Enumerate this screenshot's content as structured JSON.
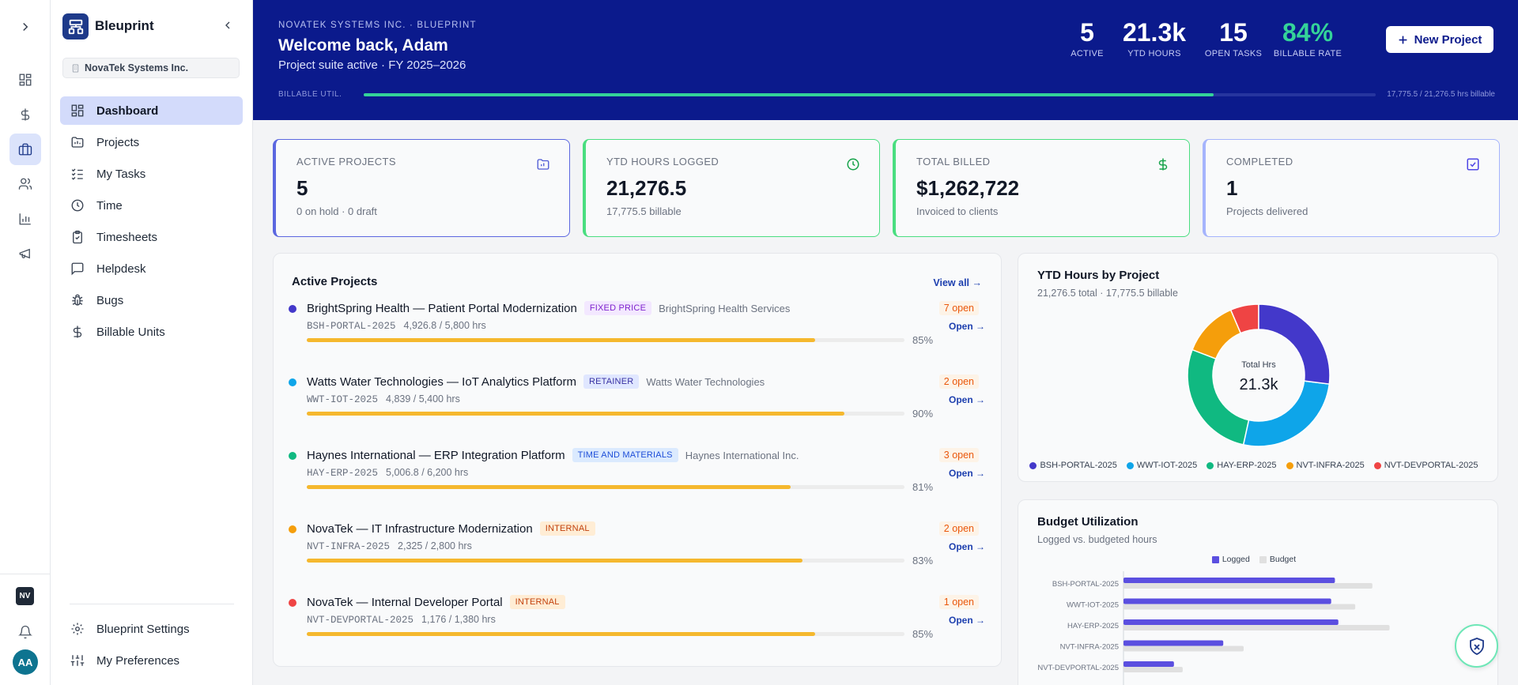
{
  "app": {
    "name": "Bleuprint",
    "org": "NovaTek Systems Inc.",
    "user_initials": "AA",
    "org_initials": "NV"
  },
  "rail": {
    "icons": [
      "chevron-right-icon",
      "dashboard-icon",
      "dollar-icon",
      "briefcase-icon",
      "users-icon",
      "bar-chart-icon",
      "megaphone-icon"
    ]
  },
  "sidebar": {
    "items": [
      {
        "label": "Dashboard",
        "icon": "dashboard-icon",
        "active": true
      },
      {
        "label": "Projects",
        "icon": "folder-icon"
      },
      {
        "label": "My Tasks",
        "icon": "list-checks-icon"
      },
      {
        "label": "Time",
        "icon": "clock-icon"
      },
      {
        "label": "Timesheets",
        "icon": "clipboard-icon"
      },
      {
        "label": "Helpdesk",
        "icon": "message-icon"
      },
      {
        "label": "Bugs",
        "icon": "bug-icon"
      },
      {
        "label": "Billable Units",
        "icon": "dollar-icon"
      }
    ],
    "bottom": [
      {
        "label": "Blueprint Settings",
        "icon": "gear-icon"
      },
      {
        "label": "My Preferences",
        "icon": "sliders-icon"
      }
    ]
  },
  "header": {
    "eyebrow": "NOVATEK SYSTEMS INC. · BLUEPRINT",
    "title": "Welcome back, Adam",
    "subtitle": "Project suite active · FY 2025–2026",
    "stats": [
      {
        "value": "5",
        "label": "ACTIVE"
      },
      {
        "value": "21.3k",
        "label": "YTD HOURS"
      },
      {
        "value": "15",
        "label": "OPEN TASKS"
      },
      {
        "value": "84%",
        "label": "BILLABLE RATE"
      }
    ],
    "new_project": "New Project",
    "util_label": "BILLABLE UTIL.",
    "util_fraction": 0.84,
    "util_text": "17,775.5 / 21,276.5 hrs billable"
  },
  "cards": [
    {
      "title": "ACTIVE PROJECTS",
      "value": "5",
      "sub": "0 on hold · 0 draft",
      "icon": "folder-icon",
      "color": "#4f5bd5"
    },
    {
      "title": "YTD HOURS LOGGED",
      "value": "21,276.5",
      "sub": "17,775.5 billable",
      "icon": "clock-icon",
      "color": "#22c55e"
    },
    {
      "title": "TOTAL BILLED",
      "value": "$1,262,722",
      "sub": "Invoiced to clients",
      "icon": "dollar-icon",
      "color": "#22c55e"
    },
    {
      "title": "COMPLETED",
      "value": "1",
      "sub": "Projects delivered",
      "icon": "check-square-icon",
      "color": "#818cf8"
    }
  ],
  "active_projects": {
    "title": "Active Projects",
    "view_all": "View all →",
    "open_link": "Open →",
    "items": [
      {
        "name": "BrightSpring Health — Patient Portal Modernization",
        "type": "FIXED PRICE",
        "client": "BrightSpring Health Services",
        "code": "BSH-PORTAL-2025",
        "hours": "4,926.8 / 5,800 hrs",
        "pct": "85%",
        "fill": 0.85,
        "open": "7 open",
        "dot": "#4338ca"
      },
      {
        "name": "Watts Water Technologies — IoT Analytics Platform",
        "type": "RETAINER",
        "client": "Watts Water Technologies",
        "code": "WWT-IOT-2025",
        "hours": "4,839 / 5,400 hrs",
        "pct": "90%",
        "fill": 0.9,
        "open": "2 open",
        "dot": "#0ea5e9"
      },
      {
        "name": "Haynes International — ERP Integration Platform",
        "type": "TIME AND MATERIALS",
        "client": "Haynes International Inc.",
        "code": "HAY-ERP-2025",
        "hours": "5,006.8 / 6,200 hrs",
        "pct": "81%",
        "fill": 0.81,
        "open": "3 open",
        "dot": "#10b981"
      },
      {
        "name": "NovaTek — IT Infrastructure Modernization",
        "type": "INTERNAL",
        "client": "",
        "code": "NVT-INFRA-2025",
        "hours": "2,325 / 2,800 hrs",
        "pct": "83%",
        "fill": 0.83,
        "open": "2 open",
        "dot": "#f59e0b"
      },
      {
        "name": "NovaTek — Internal Developer Portal",
        "type": "INTERNAL",
        "client": "",
        "code": "NVT-DEVPORTAL-2025",
        "hours": "1,176 / 1,380 hrs",
        "pct": "85%",
        "fill": 0.85,
        "open": "1 open",
        "dot": "#ef4444"
      }
    ]
  },
  "ytd_panel": {
    "title": "YTD Hours by Project",
    "sub": "21,276.5 total · 17,775.5 billable",
    "center_label": "Total Hrs",
    "center_value": "21.3k"
  },
  "budget_panel": {
    "title": "Budget Utilization",
    "sub": "Logged vs. budgeted hours"
  },
  "chart_data": [
    {
      "type": "pie",
      "title": "YTD Hours by Project",
      "categories": [
        "BSH-PORTAL-2025",
        "WWT-IOT-2025",
        "HAY-ERP-2025",
        "NVT-INFRA-2025",
        "NVT-DEVPORTAL-2025"
      ],
      "values": [
        4926.8,
        4839,
        5006.8,
        2325,
        1176
      ],
      "colors": [
        "#4338ca",
        "#0ea5e9",
        "#10b981",
        "#f59e0b",
        "#ef4444"
      ],
      "legend": "bottom"
    },
    {
      "type": "bar",
      "orientation": "horizontal",
      "title": "Budget Utilization",
      "categories": [
        "BSH-PORTAL-2025",
        "WWT-IOT-2025",
        "HAY-ERP-2025",
        "NVT-INFRA-2025",
        "NVT-DEVPORTAL-2025"
      ],
      "series": [
        {
          "name": "Logged",
          "values": [
            4926.8,
            4839,
            5006.8,
            2325,
            1176
          ],
          "color": "#5b4fe0"
        },
        {
          "name": "Budget",
          "values": [
            5800,
            5400,
            6200,
            2800,
            1380
          ],
          "color": "#e0e0e0"
        }
      ],
      "xlim": [
        0,
        7000
      ],
      "legend": "top"
    }
  ]
}
